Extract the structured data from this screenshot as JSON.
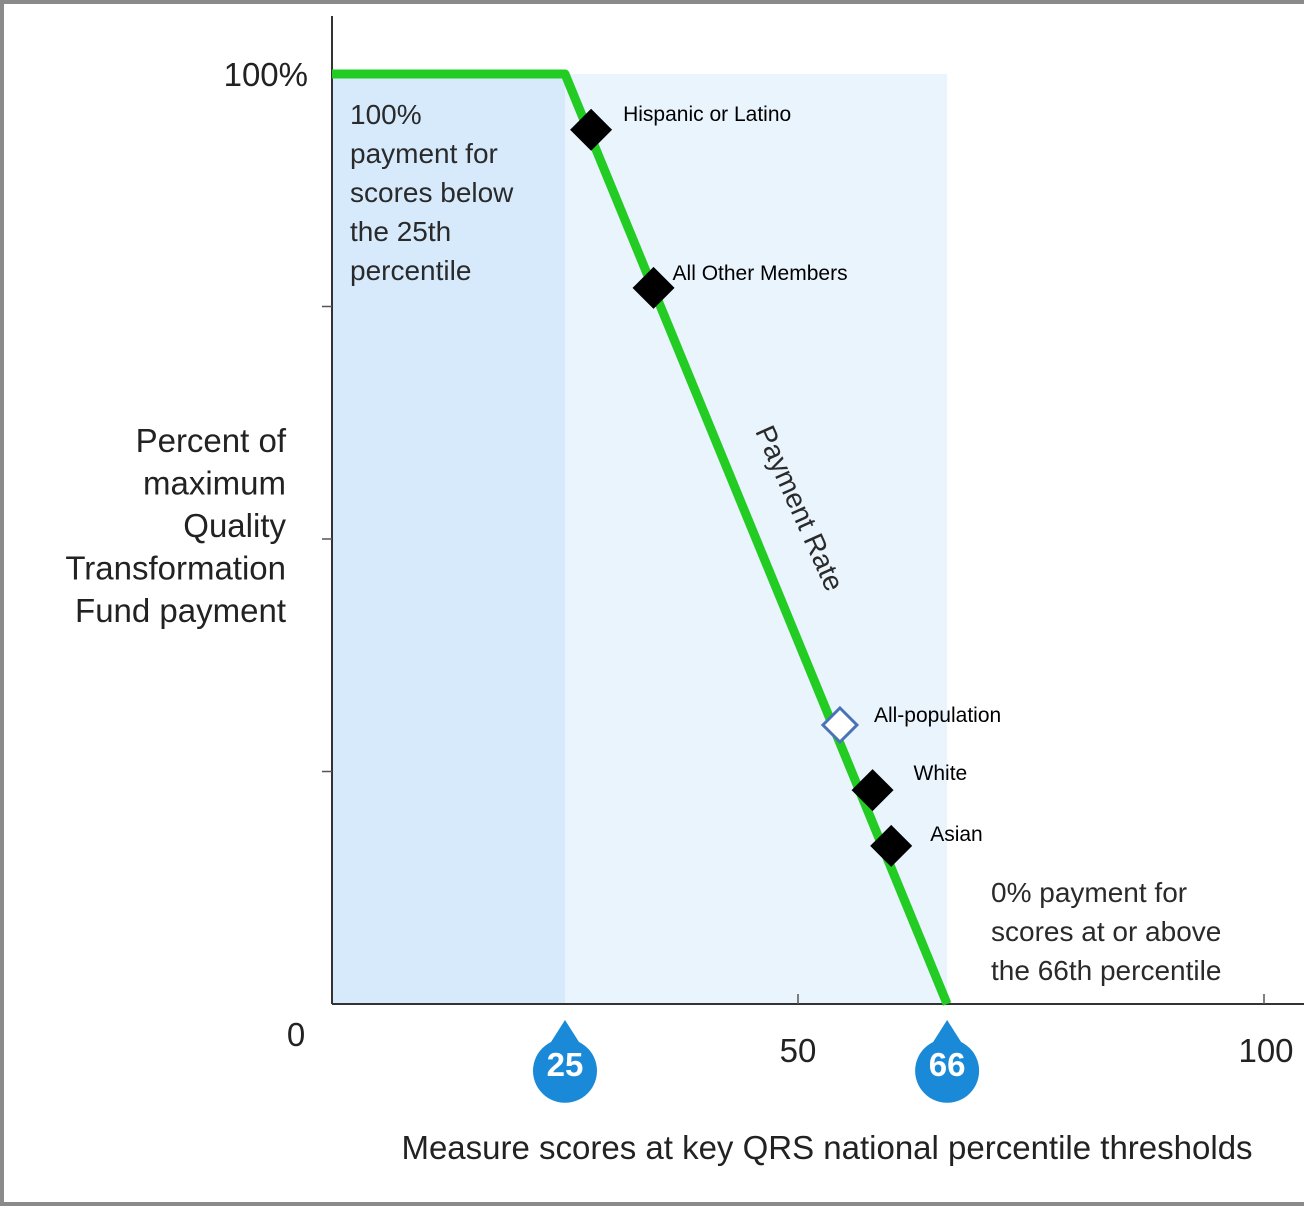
{
  "chart_data": {
    "type": "line",
    "title": "",
    "xlabel": "Measure scores at key QRS national percentile thresholds",
    "ylabel_lines": [
      "Percent of",
      "maximum",
      "Quality",
      "Transformation",
      "Fund payment"
    ],
    "xlim": [
      0,
      100
    ],
    "ylim": [
      0,
      100
    ],
    "x_tick_labels": [
      "0",
      "50",
      "100"
    ],
    "y_tick_labels": [
      "100%"
    ],
    "threshold_markers": [
      {
        "label": "25",
        "x": 25
      },
      {
        "label": "66",
        "x": 66
      }
    ],
    "series": [
      {
        "name": "Payment Rate",
        "x": [
          0,
          25,
          66
        ],
        "y": [
          100,
          100,
          0
        ],
        "color": "#22cc22"
      }
    ],
    "points": [
      {
        "label": "Hispanic or Latino",
        "x": 27.8,
        "y": 94,
        "style": "filled"
      },
      {
        "label": "All Other Members",
        "x": 34.5,
        "y": 77,
        "style": "filled"
      },
      {
        "label": "All-population",
        "x": 54.5,
        "y": 30,
        "style": "open"
      },
      {
        "label": "White",
        "x": 58.0,
        "y": 23,
        "style": "filled"
      },
      {
        "label": "Asian",
        "x": 60.0,
        "y": 17,
        "style": "filled"
      }
    ],
    "annotations": {
      "left_region_lines": [
        "100%",
        "payment for",
        "scores below",
        "the 25th",
        "percentile"
      ],
      "right_region_lines": [
        "0% payment for",
        "scores at or above",
        "the 66th percentile"
      ]
    },
    "colors": {
      "line": "#22cc22",
      "left_region": "#d6eafb",
      "middle_region": "#e9f4fd",
      "marker_fill": "#000000",
      "open_marker_edge": "#4a72b8",
      "pin": "#1a8ad8"
    },
    "legend": "none",
    "grid": false
  }
}
